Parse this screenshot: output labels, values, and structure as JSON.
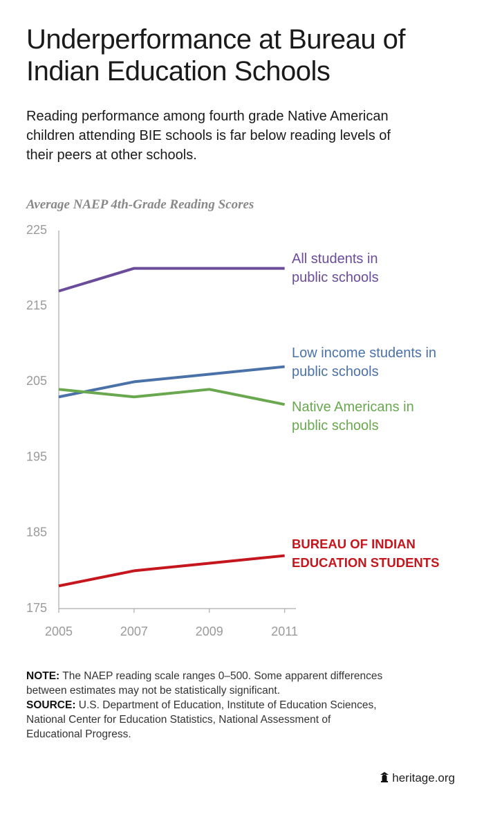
{
  "title": "Underperformance at Bureau of Indian Education Schools",
  "subtitle": "Reading performance among fourth grade Native American children attending BIE schools is far below reading levels of their peers at other schools.",
  "chart_data": {
    "type": "line",
    "title": "Average NAEP 4th-Grade Reading Scores",
    "x": [
      2005,
      2007,
      2009,
      2011
    ],
    "xlim": [
      2005,
      2011.3
    ],
    "xticks": [
      2005,
      2007,
      2009,
      2011
    ],
    "ylim": [
      175,
      225
    ],
    "yticks": [
      175,
      185,
      195,
      205,
      215,
      225
    ],
    "grid": false,
    "series": [
      {
        "name": "All students in public schools",
        "color": "#6b4c9a",
        "values": [
          217,
          220,
          220,
          220
        ]
      },
      {
        "name": "Low income students in public schools",
        "color": "#4a72a8",
        "values": [
          203,
          205,
          206,
          207
        ]
      },
      {
        "name": "Native Americans in public schools",
        "color": "#6aa84f",
        "values": [
          204,
          203,
          204,
          202
        ]
      },
      {
        "name": "BUREAU OF INDIAN EDUCATION STUDENTS",
        "color": "#c4161c",
        "values": [
          178,
          180,
          181,
          182
        ]
      }
    ]
  },
  "note": {
    "label": "NOTE:",
    "text": "The NAEP reading scale ranges 0–500. Some apparent differences between estimates may not be statistically significant."
  },
  "source": {
    "label": "SOURCE:",
    "text": "U.S. Department of Education, Institute of Education Sciences, National Center for Education Statistics, National Assessment of Educational Progress."
  },
  "footer": "heritage.org"
}
